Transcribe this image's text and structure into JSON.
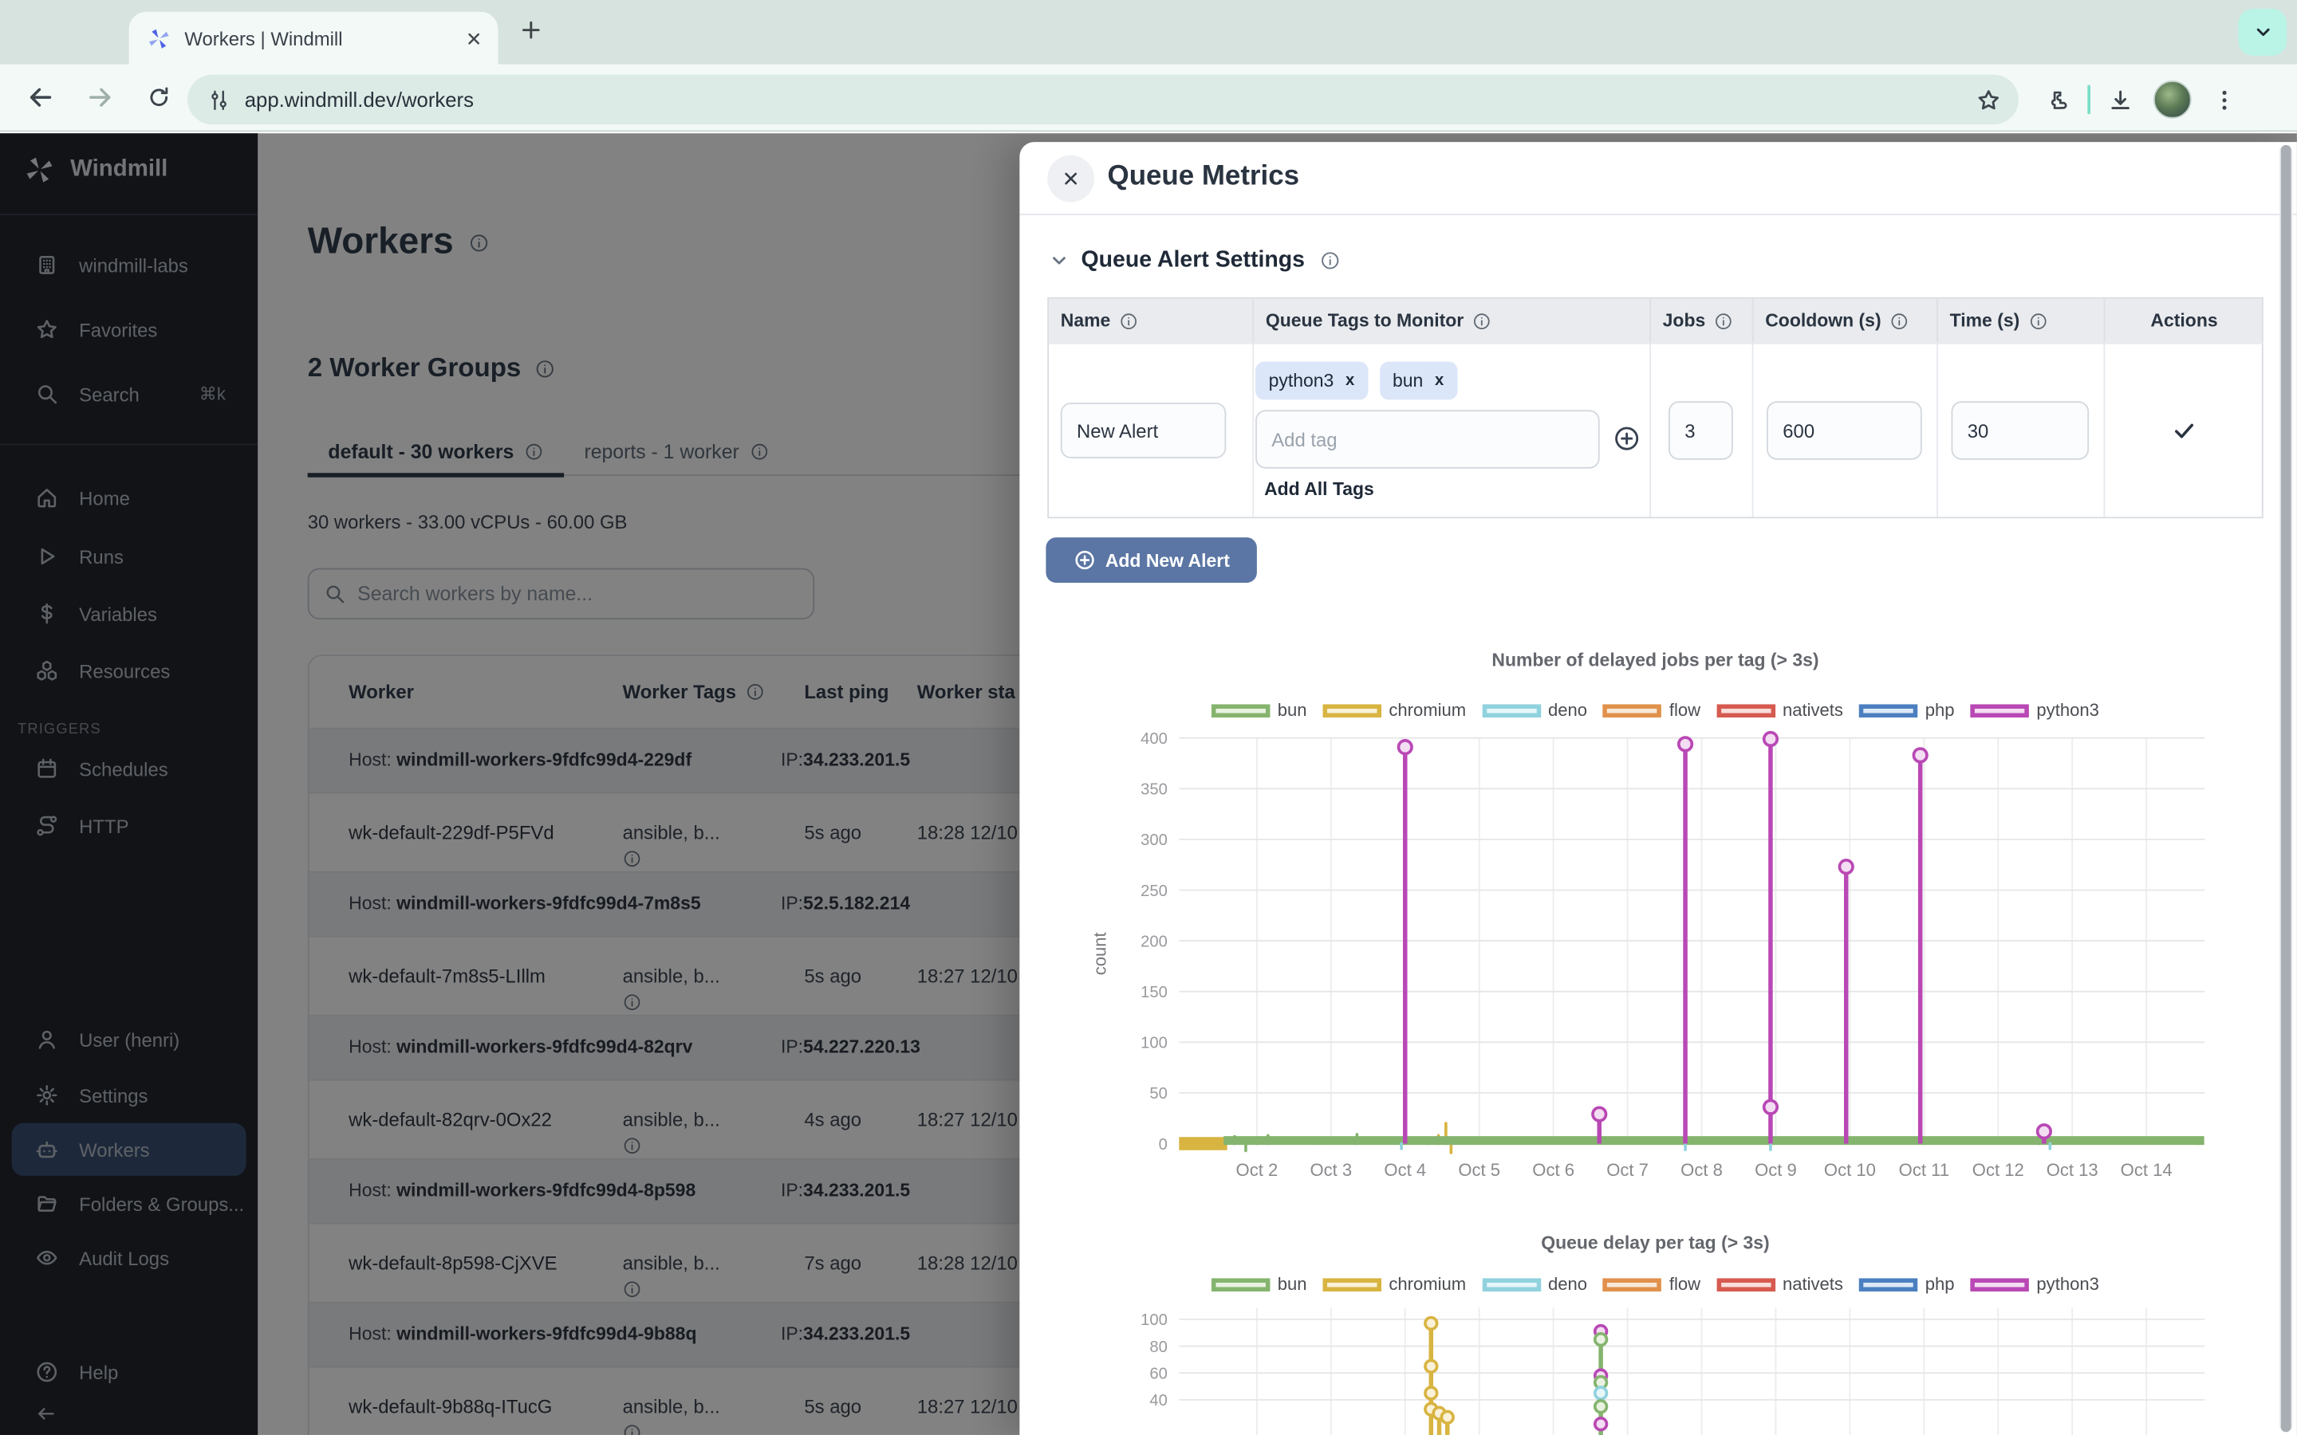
{
  "browser": {
    "tab_title": "Workers | Windmill",
    "url": "app.windmill.dev/workers"
  },
  "sidebar": {
    "brand": "Windmill",
    "items_top": [
      {
        "label": "windmill-labs",
        "icon": "building"
      },
      {
        "label": "Favorites",
        "icon": "star"
      },
      {
        "label": "Search",
        "icon": "search",
        "shortcut": "⌘k"
      }
    ],
    "items_main": [
      {
        "label": "Home",
        "icon": "home"
      },
      {
        "label": "Runs",
        "icon": "play"
      },
      {
        "label": "Variables",
        "icon": "dollar"
      },
      {
        "label": "Resources",
        "icon": "cubes"
      }
    ],
    "triggers_label": "TRIGGERS",
    "items_triggers": [
      {
        "label": "Schedules",
        "icon": "calendar"
      },
      {
        "label": "HTTP",
        "icon": "route"
      }
    ],
    "items_bottom": [
      {
        "label": "User (henri)",
        "icon": "user"
      },
      {
        "label": "Settings",
        "icon": "gear"
      },
      {
        "label": "Workers",
        "icon": "robot",
        "active": true
      },
      {
        "label": "Folders & Groups...",
        "icon": "folder"
      },
      {
        "label": "Audit Logs",
        "icon": "eye"
      }
    ],
    "help_label": "Help"
  },
  "main": {
    "title": "Workers",
    "groups_heading": "2 Worker Groups",
    "tabs": [
      {
        "label": "default - 30 workers",
        "active": true
      },
      {
        "label": "reports - 1 worker",
        "active": false
      }
    ],
    "stats": "30 workers - 33.00 vCPUs - 60.00 GB",
    "search_placeholder": "Search workers by name...",
    "table": {
      "headers": [
        "Worker",
        "Worker Tags",
        "Last ping",
        "Worker sta"
      ],
      "groups": [
        {
          "host_prefix": "Host:",
          "host": "windmill-workers-9fdfc99d4-229df",
          "ip_prefix": "IP:",
          "ip": "34.233.201.5",
          "workers": [
            {
              "name": "wk-default-229df-P5FVd",
              "tags": "ansible, b...",
              "ping": "5s ago",
              "started": "18:28 12/10"
            }
          ]
        },
        {
          "host_prefix": "Host:",
          "host": "windmill-workers-9fdfc99d4-7m8s5",
          "ip_prefix": "IP:",
          "ip": "52.5.182.214",
          "workers": [
            {
              "name": "wk-default-7m8s5-LIllm",
              "tags": "ansible, b...",
              "ping": "5s ago",
              "started": "18:27 12/10"
            }
          ]
        },
        {
          "host_prefix": "Host:",
          "host": "windmill-workers-9fdfc99d4-82qrv",
          "ip_prefix": "IP:",
          "ip": "54.227.220.13",
          "workers": [
            {
              "name": "wk-default-82qrv-0Ox22",
              "tags": "ansible, b...",
              "ping": "4s ago",
              "started": "18:27 12/10"
            }
          ]
        },
        {
          "host_prefix": "Host:",
          "host": "windmill-workers-9fdfc99d4-8p598",
          "ip_prefix": "IP:",
          "ip": "34.233.201.5",
          "workers": [
            {
              "name": "wk-default-8p598-CjXVE",
              "tags": "ansible, b...",
              "ping": "7s ago",
              "started": "18:28 12/10"
            }
          ]
        },
        {
          "host_prefix": "Host:",
          "host": "windmill-workers-9fdfc99d4-9b88q",
          "ip_prefix": "IP:",
          "ip": "34.233.201.5",
          "workers": [
            {
              "name": "wk-default-9b88q-ITucG",
              "tags": "ansible, b...",
              "ping": "5s ago",
              "started": "18:27 12/10"
            }
          ]
        }
      ]
    }
  },
  "drawer": {
    "title": "Queue Metrics",
    "section": "Queue Alert Settings",
    "alert_table": {
      "headers": [
        "Name",
        "Queue Tags to Monitor",
        "Jobs",
        "Cooldown (s)",
        "Time (s)",
        "Actions"
      ],
      "row": {
        "name": "New Alert",
        "tags": [
          "python3",
          "bun"
        ],
        "add_tag_placeholder": "Add tag",
        "add_all_tags": "Add All Tags",
        "jobs": "3",
        "cooldown": "600",
        "time": "30"
      }
    },
    "add_button": "Add New Alert"
  },
  "tag_colors": {
    "bun": {
      "stroke": "#85b46e",
      "fill": "#e9f2e1"
    },
    "chromium": {
      "stroke": "#d8b441",
      "fill": "#f9f1d8"
    },
    "deno": {
      "stroke": "#90d2de",
      "fill": "#e7f6f9"
    },
    "flow": {
      "stroke": "#e0914b",
      "fill": "#f9e9d9"
    },
    "nativets": {
      "stroke": "#d65a50",
      "fill": "#f8dedb"
    },
    "php": {
      "stroke": "#4c7fc0",
      "fill": "#dde9f7"
    },
    "python3": {
      "stroke": "#b948b5",
      "fill": "#f3ddf2"
    }
  },
  "chart_data": [
    {
      "type": "line",
      "title": "Number of delayed jobs per tag (> 3s)",
      "ylabel": "count",
      "ylim": [
        0,
        400
      ],
      "yticks": [
        0,
        50,
        100,
        150,
        200,
        250,
        300,
        350,
        400
      ],
      "x_tick_labels": [
        "Oct 2",
        "Oct 3",
        "Oct 4",
        "Oct 5",
        "Oct 6",
        "Oct 7",
        "Oct 8",
        "Oct 9",
        "Oct 10",
        "Oct 11",
        "Oct 12",
        "Oct 13",
        "Oct 14"
      ],
      "x_tick_days": [
        2,
        3,
        4,
        5,
        6,
        7,
        8,
        9,
        10,
        11,
        12,
        13,
        14
      ],
      "legend": [
        "bun",
        "chromium",
        "deno",
        "flow",
        "nativets",
        "php",
        "python3"
      ],
      "grid": true,
      "series": [
        {
          "name": "chromium",
          "style": "baseline",
          "value": 0,
          "from": 0.95,
          "to": 1.6,
          "thick": 9,
          "noise": [
            [
              2.85,
              4
            ],
            [
              4.45,
              8
            ],
            [
              4.55,
              20
            ],
            [
              4.62,
              -9
            ],
            [
              11.0,
              6
            ],
            [
              14.7,
              4
            ]
          ]
        },
        {
          "name": "bun",
          "style": "baseline",
          "value": 3,
          "from": 1.55,
          "to": 14.78,
          "thick": 6,
          "noise": [
            [
              1.7,
              7
            ],
            [
              1.85,
              -7
            ],
            [
              2.0,
              6
            ],
            [
              2.15,
              8
            ],
            [
              3.35,
              9
            ],
            [
              4.3,
              5
            ],
            [
              12.55,
              6
            ]
          ]
        },
        {
          "name": "deno",
          "style": "points",
          "noise": [
            [
              3.95,
              -5
            ],
            [
              7.78,
              -6
            ],
            [
              8.93,
              -6
            ],
            [
              12.7,
              -5
            ]
          ]
        },
        {
          "name": "python3",
          "style": "stem",
          "points": [
            [
              4.0,
              391
            ],
            [
              6.62,
              29
            ],
            [
              7.78,
              394
            ],
            [
              8.93,
              399
            ],
            [
              9.95,
              273
            ],
            [
              10.95,
              383
            ],
            [
              12.62,
              12
            ]
          ],
          "extra_markers": [
            [
              8.93,
              36
            ]
          ]
        }
      ]
    },
    {
      "type": "line",
      "title": "Queue delay per tag (> 3s)",
      "ylabel": "",
      "yticks": [
        40,
        60,
        80,
        100
      ],
      "x_tick_days": [
        2,
        3,
        4,
        5,
        6,
        7,
        8,
        9,
        10,
        11,
        12,
        13,
        14
      ],
      "legend": [
        "bun",
        "chromium",
        "deno",
        "flow",
        "nativets",
        "php",
        "python3"
      ],
      "grid": true,
      "clusters": [
        {
          "x": 4.35,
          "stems": [
            [
              "chromium",
              100
            ]
          ],
          "markers": [
            [
              "chromium",
              97
            ],
            [
              "chromium",
              65
            ],
            [
              "chromium",
              45
            ],
            [
              "chromium",
              33
            ]
          ]
        },
        {
          "x": 4.46,
          "stems": [
            [
              "chromium",
              30
            ]
          ],
          "markers": [
            [
              "chromium",
              30
            ]
          ]
        },
        {
          "x": 4.57,
          "stems": [
            [
              "chromium",
              27
            ]
          ],
          "markers": [
            [
              "chromium",
              27
            ]
          ]
        },
        {
          "x": 6.64,
          "stems": [
            [
              "bun",
              91
            ]
          ],
          "markers": [
            [
              "python3",
              91
            ],
            [
              "bun",
              85
            ],
            [
              "python3",
              58
            ],
            [
              "bun",
              53
            ],
            [
              "deno",
              45
            ],
            [
              "bun",
              35
            ],
            [
              "python3",
              22
            ]
          ]
        }
      ]
    }
  ]
}
